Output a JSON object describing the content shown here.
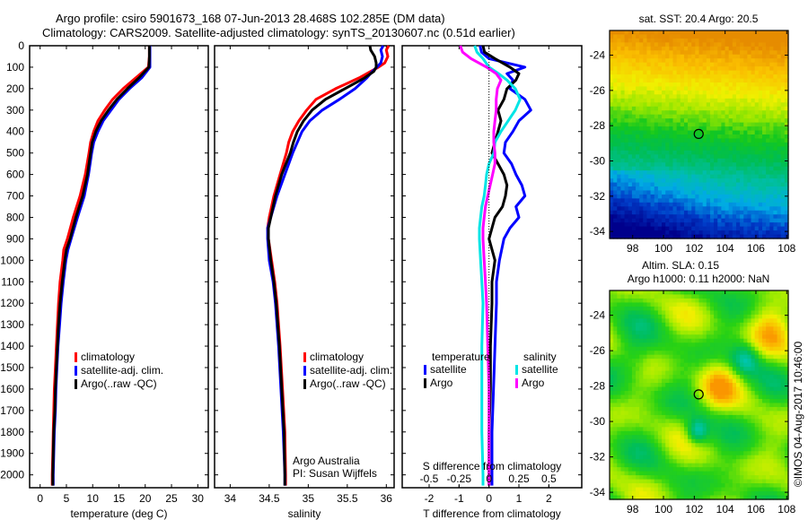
{
  "header": {
    "line1": "Argo profile: csiro 5901673_168 07-Jun-2013 28.468S 102.285E (DM data)",
    "line2": "Climatology: CARS2009. Satellite-adjusted climatology: synTS_20130607.nc (0.51d earlier)"
  },
  "credit": "©IMOS 04-Aug-2017 10:46:00",
  "colors": {
    "climatology": "#ff0000",
    "satellite": "#0000ff",
    "argo": "#000000",
    "sal_satellite": "#00e5e5",
    "sal_argo": "#ff00ff"
  },
  "chart_data": [
    {
      "type": "line",
      "name": "temperature-profile",
      "xlabel": "temperature (deg C)",
      "ylabel": "",
      "xlim": [
        -2,
        32
      ],
      "ylim": [
        2060,
        0
      ],
      "xticks": [
        "0",
        "5",
        "10",
        "15",
        "20",
        "25",
        "30"
      ],
      "xtick_values": [
        0,
        5,
        10,
        15,
        20,
        25,
        30
      ],
      "yticks": [
        "0",
        "100",
        "200",
        "300",
        "400",
        "500",
        "600",
        "700",
        "800",
        "900",
        "1000",
        "1100",
        "1200",
        "1300",
        "1400",
        "1500",
        "1600",
        "1700",
        "1800",
        "1900",
        "2000"
      ],
      "ytick_values": [
        0,
        100,
        200,
        300,
        400,
        500,
        600,
        700,
        800,
        900,
        1000,
        1100,
        1200,
        1300,
        1400,
        1500,
        1600,
        1700,
        1800,
        1900,
        2000
      ],
      "legend": [
        "climatology",
        "satellite-adj. clim.",
        "Argo(..raw -QC)"
      ],
      "legend_placement": "center-left",
      "depth": [
        0,
        50,
        100,
        150,
        200,
        250,
        300,
        350,
        400,
        450,
        500,
        600,
        700,
        800,
        900,
        950,
        1000,
        1100,
        1200,
        1300,
        1400,
        1500,
        1600,
        1700,
        1800,
        1900,
        2000,
        2050
      ],
      "series": [
        {
          "name": "climatology",
          "color": "#ff0000",
          "values": [
            20.8,
            20.8,
            20.6,
            18.2,
            15.8,
            13.8,
            12.3,
            11.0,
            10.2,
            9.6,
            9.3,
            8.6,
            7.6,
            6.3,
            5.2,
            4.5,
            4.3,
            3.8,
            3.5,
            3.3,
            3.1,
            2.9,
            2.7,
            2.6,
            2.5,
            2.4,
            2.3,
            2.3
          ]
        },
        {
          "name": "satellite-adj. clim.",
          "color": "#0000ff",
          "values": [
            20.9,
            20.9,
            20.9,
            19.3,
            17.0,
            15.0,
            13.5,
            12.0,
            11.0,
            10.2,
            9.8,
            9.2,
            8.4,
            7.1,
            5.9,
            5.3,
            4.9,
            4.4,
            4.0,
            3.7,
            3.4,
            3.2,
            3.0,
            2.9,
            2.7,
            2.6,
            2.5,
            2.5
          ]
        },
        {
          "name": "Argo(..raw -QC)",
          "color": "#000000",
          "values": [
            20.8,
            20.8,
            20.7,
            18.8,
            16.6,
            14.6,
            13.0,
            11.6,
            10.6,
            9.9,
            9.6,
            9.0,
            8.1,
            6.8,
            5.7,
            5.0,
            4.7,
            4.2,
            3.8,
            3.5,
            3.3,
            3.1,
            2.9,
            2.8,
            2.6,
            2.5,
            2.4,
            2.4
          ]
        }
      ]
    },
    {
      "type": "line",
      "name": "salinity-profile",
      "xlabel": "salinity",
      "xlim": [
        33.8,
        36.1
      ],
      "ylim": [
        2060,
        0
      ],
      "xticks": [
        "34",
        "34.5",
        "35",
        "35.5",
        "36"
      ],
      "xtick_values": [
        34,
        34.5,
        35,
        35.5,
        36
      ],
      "legend": [
        "climatology",
        "satellite-adj. clim.",
        "Argo(..raw -QC)"
      ],
      "legend_placement": "center-right",
      "annotation": [
        "Argo Australia",
        "PI: Susan Wijffels"
      ],
      "depth": [
        0,
        20,
        50,
        80,
        100,
        120,
        150,
        200,
        250,
        300,
        350,
        400,
        450,
        500,
        600,
        700,
        800,
        850,
        900,
        1000,
        1100,
        1200,
        1400,
        1600,
        1800,
        2000,
        2050
      ],
      "series": [
        {
          "name": "climatology",
          "color": "#ff0000",
          "values": [
            36.03,
            36.0,
            36.02,
            35.98,
            35.9,
            35.8,
            35.65,
            35.35,
            35.1,
            34.98,
            34.88,
            34.8,
            34.75,
            34.72,
            34.64,
            34.56,
            34.5,
            34.48,
            34.49,
            34.53,
            34.57,
            34.6,
            34.64,
            34.67,
            34.7,
            34.71,
            34.71
          ]
        },
        {
          "name": "satellite-adj. clim.",
          "color": "#0000ff",
          "values": [
            35.96,
            35.93,
            35.95,
            35.93,
            35.88,
            35.82,
            35.75,
            35.6,
            35.4,
            35.18,
            35.02,
            34.92,
            34.86,
            34.8,
            34.7,
            34.6,
            34.52,
            34.48,
            34.48,
            34.5,
            34.55,
            34.58,
            34.62,
            34.65,
            34.68,
            34.7,
            34.7
          ]
        },
        {
          "name": "Argo(..raw -QC)",
          "color": "#000000",
          "values": [
            35.79,
            35.8,
            35.85,
            35.87,
            35.87,
            35.84,
            35.72,
            35.47,
            35.22,
            35.05,
            34.94,
            34.86,
            34.81,
            34.77,
            34.66,
            34.58,
            34.52,
            34.49,
            34.49,
            34.52,
            34.56,
            34.59,
            34.63,
            34.66,
            34.69,
            34.7,
            34.7
          ]
        }
      ]
    },
    {
      "type": "line",
      "name": "difference-profile",
      "xlabel": "T difference from climatology",
      "x2label": "S difference from climatology",
      "xlim": [
        -2.9,
        3.1
      ],
      "x2lim": [
        -0.725,
        0.775
      ],
      "ylim": [
        2060,
        0
      ],
      "xticks": [
        "-2",
        "-1",
        "0",
        "1",
        "2"
      ],
      "xtick_values": [
        -2,
        -1,
        0,
        1,
        2
      ],
      "x2ticks": [
        "-0.5",
        "-0.25",
        "0",
        "0.25",
        "0.5"
      ],
      "x2tick_values": [
        -0.5,
        -0.25,
        0,
        0.25,
        0.5
      ],
      "legend_temperature": {
        "title": "temperature",
        "items": [
          "satellite",
          "Argo"
        ]
      },
      "legend_salinity": {
        "title": "salinity",
        "items": [
          "satellite",
          "Argo"
        ]
      },
      "depth": [
        0,
        30,
        60,
        100,
        130,
        160,
        200,
        250,
        300,
        350,
        400,
        450,
        500,
        550,
        600,
        650,
        700,
        750,
        800,
        850,
        900,
        1000,
        1100,
        1200,
        1400,
        1600,
        1800,
        2000,
        2050
      ],
      "series": [
        {
          "name": "T satellite",
          "axis": "T",
          "color": "#0000ff",
          "values": [
            -0.3,
            -0.25,
            0.0,
            1.2,
            0.6,
            0.8,
            0.7,
            1.2,
            1.4,
            1.0,
            0.8,
            0.55,
            0.5,
            0.75,
            0.9,
            1.1,
            1.2,
            0.9,
            1.0,
            0.7,
            0.5,
            0.35,
            0.25,
            0.25,
            0.2,
            0.15,
            0.1,
            0.1,
            0.1
          ]
        },
        {
          "name": "T Argo",
          "axis": "T",
          "color": "#000000",
          "values": [
            -0.2,
            -0.15,
            0.2,
            0.7,
            1.0,
            0.9,
            0.6,
            0.5,
            0.3,
            0.4,
            0.3,
            0.2,
            0.1,
            0.3,
            0.5,
            0.6,
            0.55,
            0.45,
            0.2,
            0.1,
            0.0,
            0.2,
            0.1,
            0.1,
            0.05,
            0.05,
            0.0,
            0.0,
            0.0
          ]
        },
        {
          "name": "S satellite",
          "axis": "S",
          "color": "#00e5e5",
          "values": [
            -0.12,
            -0.1,
            -0.05,
            0.0,
            0.08,
            0.15,
            0.22,
            0.26,
            0.22,
            0.16,
            0.1,
            0.05,
            0.04,
            0.0,
            -0.02,
            -0.03,
            -0.04,
            -0.06,
            -0.07,
            -0.08,
            -0.08,
            -0.07,
            -0.06,
            -0.05,
            -0.06,
            -0.06,
            -0.06,
            -0.05,
            -0.05
          ]
        },
        {
          "name": "S Argo",
          "axis": "S",
          "color": "#ff00ff",
          "values": [
            -0.24,
            -0.22,
            -0.15,
            -0.02,
            0.06,
            0.1,
            0.07,
            0.06,
            0.06,
            0.05,
            0.04,
            0.04,
            0.05,
            0.05,
            0.03,
            0.01,
            -0.01,
            -0.03,
            -0.04,
            -0.05,
            -0.05,
            -0.04,
            -0.03,
            -0.02,
            -0.01,
            0.0,
            0.0,
            0.0,
            0.0
          ]
        }
      ]
    },
    {
      "type": "heatmap",
      "name": "sst-map",
      "title": "sat. SST: 20.4 Argo: 20.5",
      "xlim": [
        96.5,
        108.1
      ],
      "ylim": [
        -34.4,
        -22.6
      ],
      "xticks": [
        "98",
        "100",
        "102",
        "104",
        "106",
        "108"
      ],
      "xtick_values": [
        98,
        100,
        102,
        104,
        106,
        108
      ],
      "yticks": [
        "-24",
        "-26",
        "-28",
        "-30",
        "-32",
        "-34"
      ],
      "ytick_values": [
        -24,
        -26,
        -28,
        -30,
        -32,
        -34
      ],
      "marker": {
        "lon": 102.285,
        "lat": -28.468
      },
      "description": "warm (orange/yellow) in north, green mid, cyan to dark blue in south-west"
    },
    {
      "type": "heatmap",
      "name": "sla-map",
      "title": [
        "Altim. SLA: 0.15",
        "Argo h1000: 0.11 h2000: NaN"
      ],
      "xlim": [
        96.5,
        108.1
      ],
      "ylim": [
        -34.4,
        -22.6
      ],
      "xticks": [
        "98",
        "100",
        "102",
        "104",
        "106",
        "108"
      ],
      "xtick_values": [
        98,
        100,
        102,
        104,
        106,
        108
      ],
      "yticks": [
        "-24",
        "-26",
        "-28",
        "-30",
        "-32",
        "-34"
      ],
      "ytick_values": [
        -24,
        -26,
        -28,
        -30,
        -32,
        -34
      ],
      "marker": {
        "lon": 102.285,
        "lat": -28.468
      },
      "description": "mottled green/yellow field with orange high near 103.5E 28S and cyan lows near 105E 26.5S and 102E 30.5S"
    }
  ]
}
